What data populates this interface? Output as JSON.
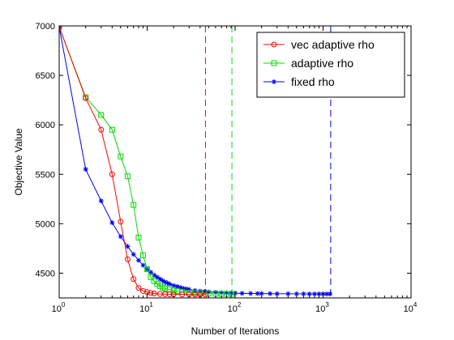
{
  "chart_data": {
    "type": "line",
    "title": "",
    "xlabel": "Number of Iterations",
    "ylabel": "Objective Value",
    "xscale": "log",
    "xlim": [
      1,
      10000
    ],
    "ylim": [
      4250,
      7000
    ],
    "x_ticks": [
      {
        "value": 1,
        "base": "10",
        "exp": "0"
      },
      {
        "value": 10,
        "base": "10",
        "exp": "1"
      },
      {
        "value": 100,
        "base": "10",
        "exp": "2"
      },
      {
        "value": 1000,
        "base": "10",
        "exp": "3"
      },
      {
        "value": 10000,
        "base": "10",
        "exp": "4"
      }
    ],
    "y_ticks": [
      4500,
      5000,
      5500,
      6000,
      6500,
      7000
    ],
    "y_tick_labels": [
      "4500",
      "5000",
      "5500",
      "6000",
      "6500",
      "7000"
    ],
    "grid": false,
    "legend_position": "top-right",
    "series": [
      {
        "name": "vec adaptive rho",
        "color": "#ff0000",
        "marker": "circle",
        "x": [
          1,
          2,
          3,
          4,
          5,
          6,
          7,
          8,
          9,
          10,
          11,
          12,
          14,
          16,
          18,
          20,
          25,
          30,
          35,
          40,
          46
        ],
        "y": [
          6990,
          6270,
          5950,
          5500,
          5020,
          4640,
          4440,
          4350,
          4320,
          4310,
          4300,
          4295,
          4290,
          4288,
          4287,
          4286,
          4285,
          4285,
          4284,
          4284,
          4284
        ],
        "stop": 46
      },
      {
        "name": "adaptive rho",
        "color": "#00dd00",
        "marker": "square",
        "x": [
          1,
          2,
          3,
          4,
          5,
          6,
          7,
          8,
          9,
          10,
          11,
          12,
          13,
          14,
          15,
          16,
          18,
          20,
          22,
          25,
          30,
          35,
          40,
          50,
          60,
          70,
          80,
          92
        ],
        "y": [
          6990,
          6280,
          6100,
          5950,
          5680,
          5480,
          5190,
          4860,
          4680,
          4540,
          4460,
          4420,
          4390,
          4370,
          4355,
          4345,
          4335,
          4325,
          4318,
          4312,
          4305,
          4300,
          4298,
          4294,
          4292,
          4291,
          4290,
          4290
        ],
        "stop": 92
      },
      {
        "name": "fixed rho",
        "color": "#0000ff",
        "marker": "star",
        "x": [
          1,
          2,
          3,
          4,
          5,
          6,
          7,
          8,
          9,
          10,
          11,
          12,
          13,
          14,
          15,
          16,
          17,
          18,
          20,
          22,
          24,
          26,
          28,
          30,
          35,
          40,
          45,
          50,
          60,
          70,
          80,
          90,
          100,
          120,
          150,
          180,
          200,
          250,
          300,
          400,
          500,
          600,
          700,
          800,
          900,
          1000,
          1100,
          1200
        ],
        "y": [
          6990,
          5550,
          5230,
          5010,
          4870,
          4770,
          4690,
          4630,
          4580,
          4540,
          4510,
          4480,
          4460,
          4440,
          4425,
          4410,
          4400,
          4390,
          4375,
          4365,
          4355,
          4345,
          4340,
          4335,
          4325,
          4318,
          4314,
          4310,
          4306,
          4303,
          4300,
          4299,
          4298,
          4296,
          4295,
          4294,
          4294,
          4293,
          4292,
          4292,
          4291,
          4291,
          4290,
          4290,
          4290,
          4290,
          4290,
          4290
        ],
        "stop": 1220
      }
    ]
  }
}
